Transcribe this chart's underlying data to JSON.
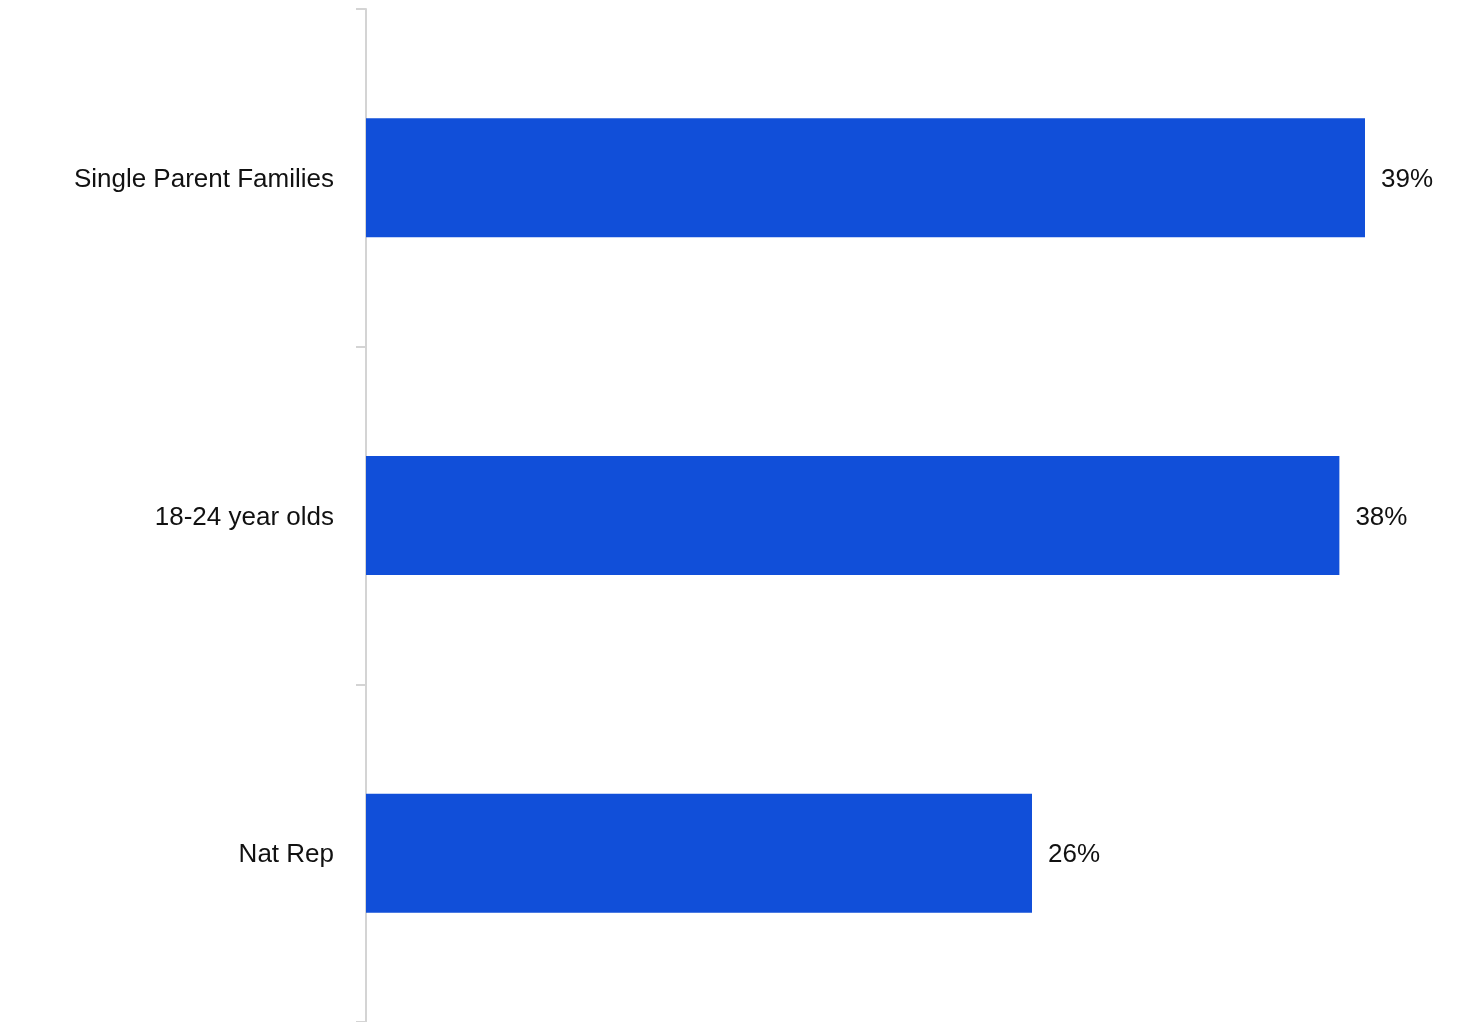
{
  "chart_data": {
    "type": "bar",
    "orientation": "horizontal",
    "categories": [
      "Single Parent Families",
      "18-24 year olds",
      "Nat Rep"
    ],
    "series": [
      {
        "color": "#114fd9",
        "values": [
          39,
          38,
          26
        ],
        "value_labels": [
          "39%",
          "38%",
          "26%"
        ]
      }
    ]
  }
}
